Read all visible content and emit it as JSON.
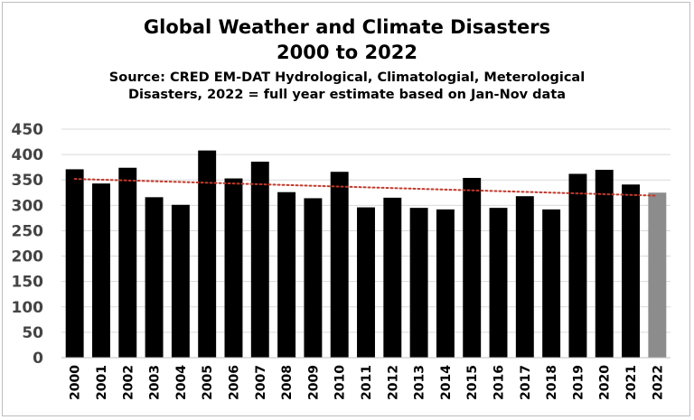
{
  "chart_data": {
    "type": "bar",
    "title": "Global Weather and Climate Disasters",
    "title_line2": "2000 to 2022",
    "subtitle_line1": "Source: CRED EM-DAT Hydrological, Climatologial, Meterological",
    "subtitle_line2": "Disasters, 2022 = full year estimate based on Jan-Nov data",
    "xlabel": "",
    "ylabel": "",
    "ylim": [
      0,
      450
    ],
    "yticks": [
      0,
      50,
      100,
      150,
      200,
      250,
      300,
      350,
      400,
      450
    ],
    "grid": true,
    "legend": "none",
    "categories": [
      "2000",
      "2001",
      "2002",
      "2003",
      "2004",
      "2005",
      "2006",
      "2007",
      "2008",
      "2009",
      "2010",
      "2011",
      "2012",
      "2013",
      "2014",
      "2015",
      "2016",
      "2017",
      "2018",
      "2019",
      "2020",
      "2021",
      "2022"
    ],
    "values": [
      371,
      343,
      374,
      316,
      301,
      408,
      353,
      386,
      326,
      314,
      366,
      296,
      315,
      295,
      292,
      354,
      295,
      318,
      292,
      362,
      370,
      341,
      325
    ],
    "bar_colors": [
      "#000000",
      "#000000",
      "#000000",
      "#000000",
      "#000000",
      "#000000",
      "#000000",
      "#000000",
      "#000000",
      "#000000",
      "#000000",
      "#000000",
      "#000000",
      "#000000",
      "#000000",
      "#000000",
      "#000000",
      "#000000",
      "#000000",
      "#000000",
      "#000000",
      "#000000",
      "#8c8c8c"
    ],
    "trendline": {
      "style": "dotted",
      "color": "#c0392b",
      "start_value": 352,
      "end_value": 319
    }
  }
}
